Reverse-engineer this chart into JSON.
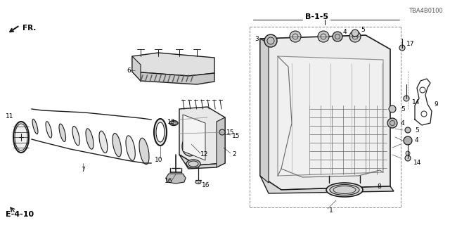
{
  "bg_color": "#ffffff",
  "page_ref_top": "E-4-10",
  "page_ref_bottom": "B-1-5",
  "part_number": "TBA4B0100",
  "fr_label": "FR.",
  "line_color": "#1a1a1a",
  "text_color": "#000000",
  "label_fontsize": 6.5,
  "title_fontsize": 8
}
